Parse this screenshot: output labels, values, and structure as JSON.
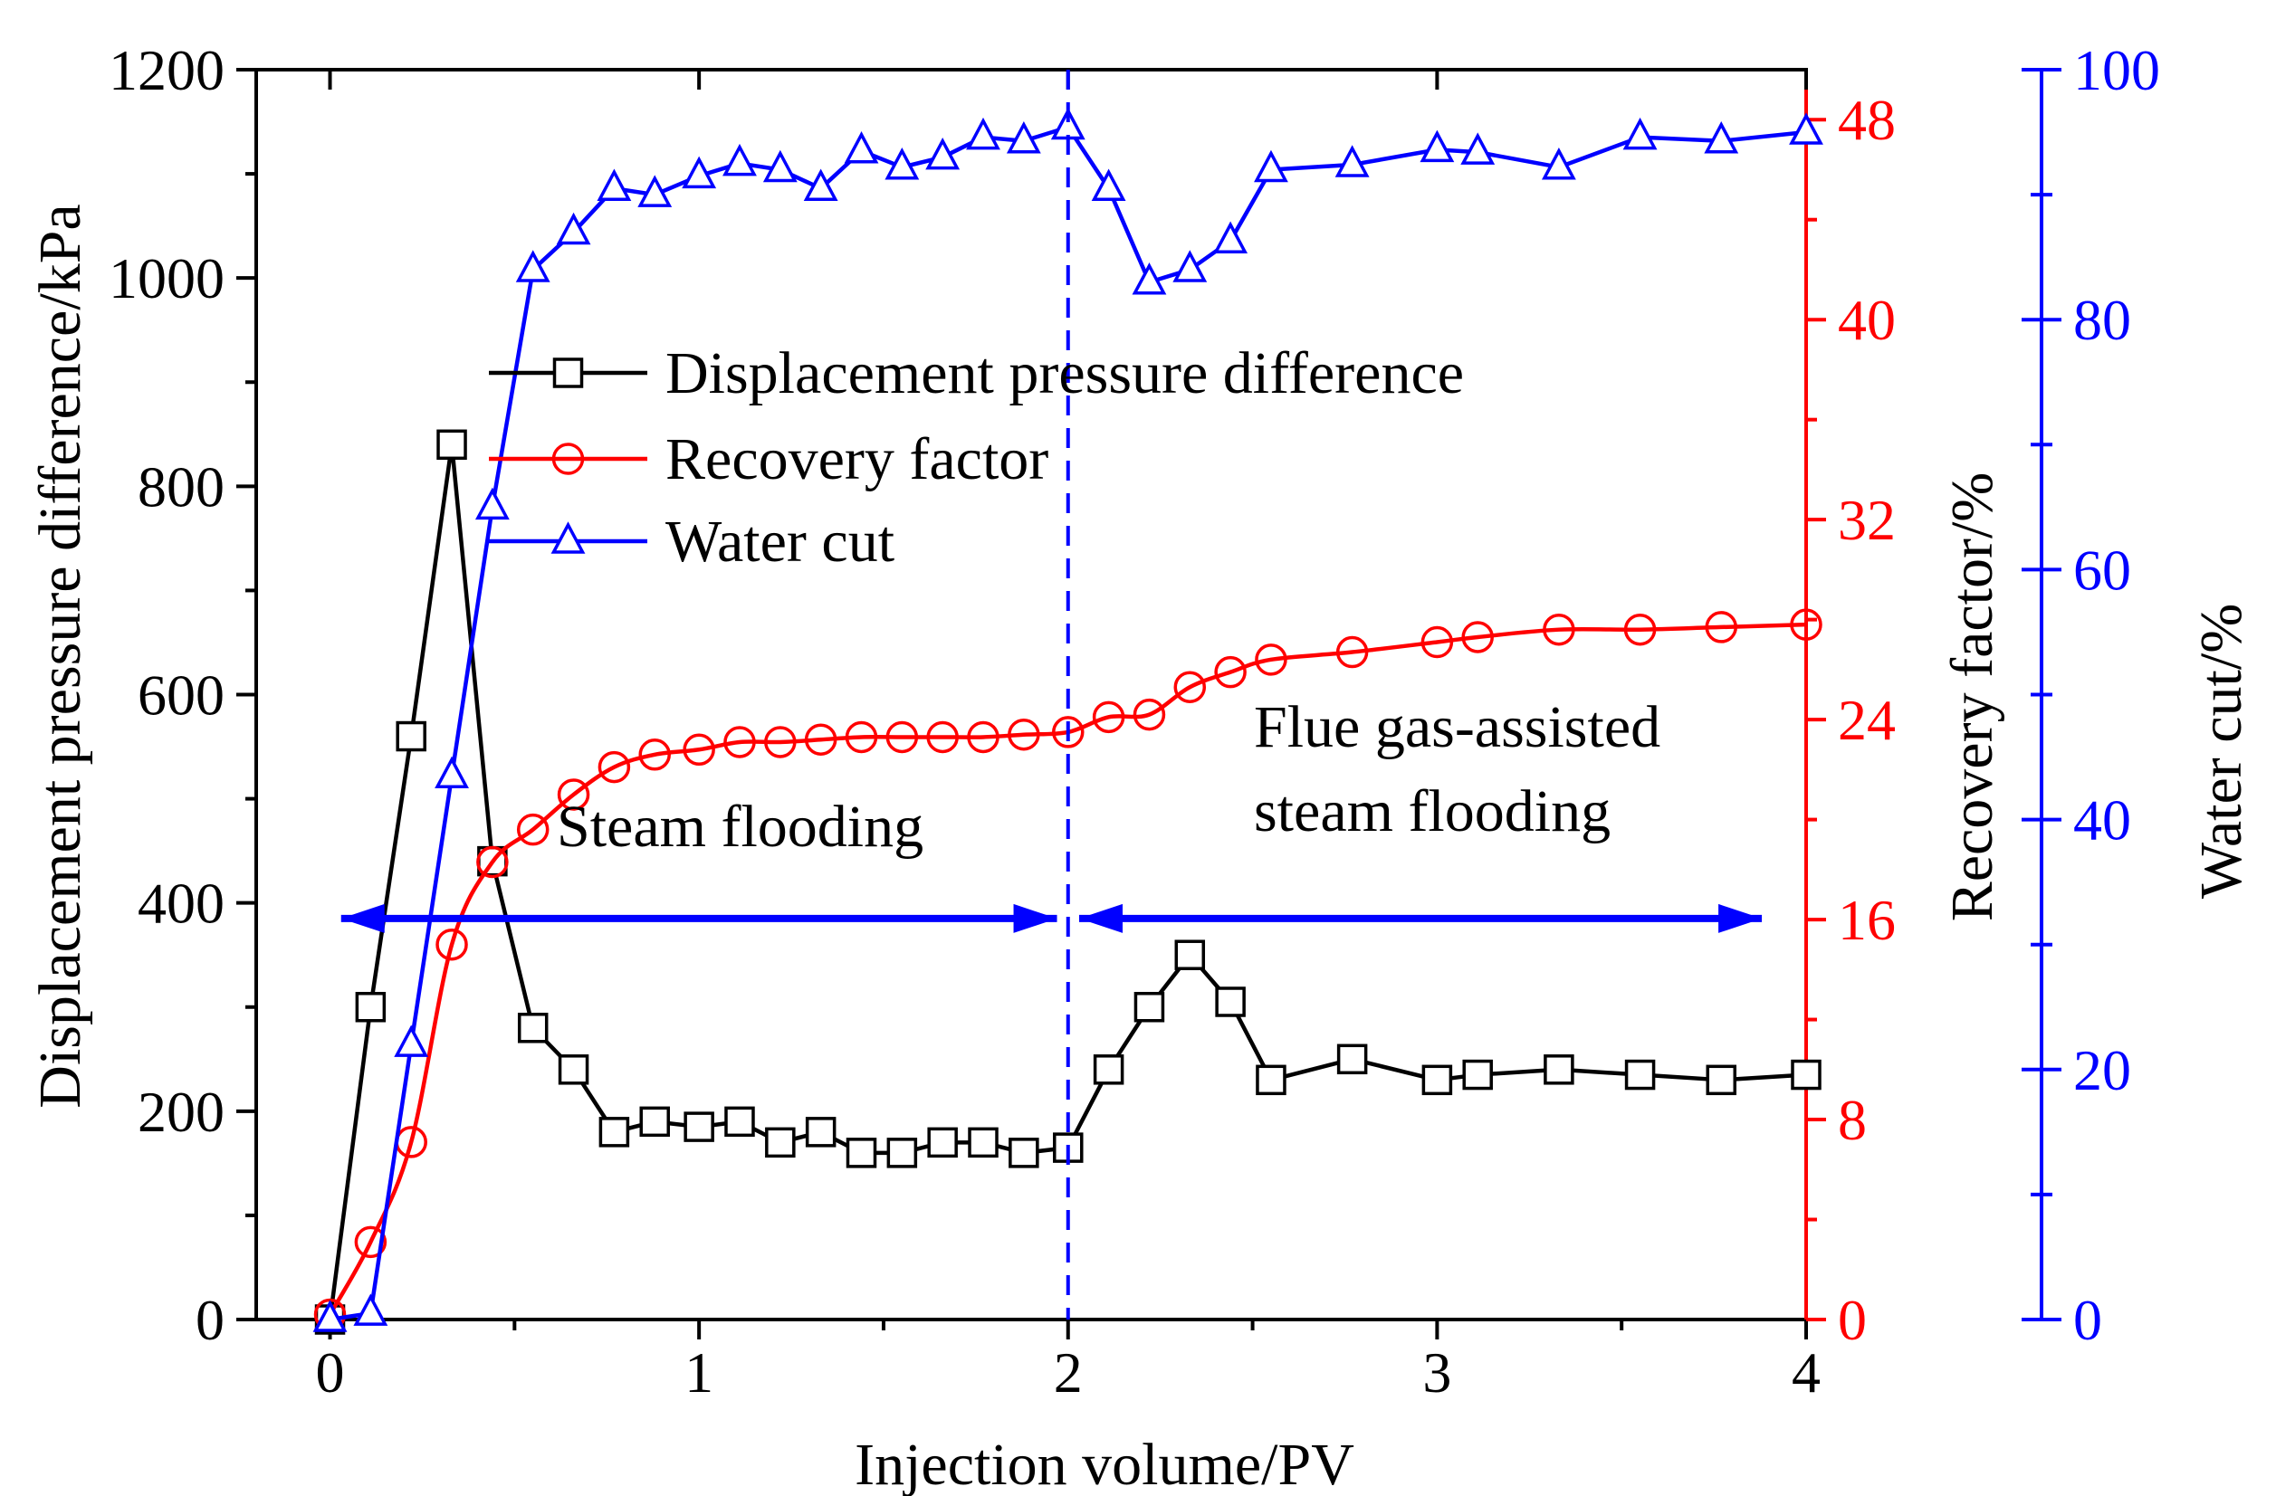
{
  "chart_data": {
    "type": "line",
    "xlabel": "Injection volume/PV",
    "x_ticks": [
      "0",
      "1",
      "2",
      "3",
      "4"
    ],
    "xlim": [
      -0.2,
      4.0
    ],
    "axes": {
      "left": {
        "label": "Displacement pressure difference/kPa",
        "ylim": [
          0,
          1200
        ],
        "ticks": [
          "0",
          "200",
          "400",
          "600",
          "800",
          "1000",
          "1200"
        ],
        "color": "#000000"
      },
      "right1": {
        "label": "Recovery factor/%",
        "ylim": [
          0,
          50
        ],
        "ticks": [
          "0",
          "8",
          "16",
          "24",
          "32",
          "40",
          "48"
        ],
        "color": "#ff0000"
      },
      "right2": {
        "label": "Water cut/%",
        "ylim": [
          0,
          100
        ],
        "ticks": [
          "0",
          "20",
          "40",
          "60",
          "80",
          "100"
        ],
        "color": "#0000ff"
      }
    },
    "series": [
      {
        "name": "Displacement pressure difference",
        "axis": "left",
        "color": "#000000",
        "marker": "square",
        "x": [
          0,
          0.11,
          0.22,
          0.33,
          0.44,
          0.55,
          0.66,
          0.77,
          0.88,
          1.0,
          1.11,
          1.22,
          1.33,
          1.44,
          1.55,
          1.66,
          1.77,
          1.88,
          2.0,
          2.11,
          2.22,
          2.33,
          2.44,
          2.55,
          2.77,
          3.0,
          3.11,
          3.33,
          3.55,
          3.77,
          4.0
        ],
        "values": [
          0,
          300,
          560,
          840,
          440,
          280,
          240,
          180,
          190,
          185,
          190,
          170,
          180,
          160,
          160,
          170,
          170,
          160,
          165,
          240,
          300,
          350,
          305,
          230,
          250,
          230,
          235,
          240,
          235,
          230,
          235
        ]
      },
      {
        "name": "Recovery factor",
        "axis": "right1",
        "color": "#ff0000",
        "marker": "circle",
        "x": [
          0,
          0.11,
          0.22,
          0.33,
          0.44,
          0.55,
          0.66,
          0.77,
          0.88,
          1.0,
          1.11,
          1.22,
          1.33,
          1.44,
          1.55,
          1.66,
          1.77,
          1.88,
          2.0,
          2.11,
          2.22,
          2.33,
          2.44,
          2.55,
          2.77,
          3.0,
          3.11,
          3.33,
          3.55,
          3.77,
          4.0
        ],
        "values": [
          0.2,
          3.1,
          7.1,
          15.0,
          18.3,
          19.6,
          21.0,
          22.1,
          22.6,
          22.8,
          23.1,
          23.1,
          23.2,
          23.3,
          23.3,
          23.3,
          23.3,
          23.4,
          23.5,
          24.1,
          24.2,
          25.3,
          25.9,
          26.4,
          26.7,
          27.1,
          27.3,
          27.6,
          27.6,
          27.7,
          27.8
        ]
      },
      {
        "name": "Water cut",
        "axis": "right2",
        "color": "#0000ff",
        "marker": "triangle",
        "x": [
          0,
          0.11,
          0.22,
          0.33,
          0.44,
          0.55,
          0.66,
          0.77,
          0.88,
          1.0,
          1.11,
          1.22,
          1.33,
          1.44,
          1.55,
          1.66,
          1.77,
          1.88,
          2.0,
          2.11,
          2.22,
          2.33,
          2.44,
          2.55,
          2.77,
          3.0,
          3.11,
          3.33,
          3.55,
          3.77,
          4.0
        ],
        "values": [
          0,
          0.5,
          22,
          43.5,
          65,
          84,
          87,
          90.5,
          90,
          91.5,
          92.5,
          92,
          90.5,
          93.5,
          92.2,
          93,
          94.6,
          94.3,
          95.4,
          90.5,
          83,
          84,
          86.3,
          92,
          92.4,
          93.6,
          93.4,
          92.2,
          94.6,
          94.3,
          95
        ]
      }
    ],
    "legend": {
      "position": "top-left",
      "entries": [
        "Displacement pressure difference",
        "Recovery factor",
        "Water cut"
      ]
    },
    "annotations": [
      {
        "text": "Steam flooding",
        "arrow_from_x": 0.03,
        "arrow_to_x": 1.97,
        "arrow_y": 385
      },
      {
        "text_lines": [
          "Flue gas-assisted",
          "steam flooding"
        ],
        "arrow_from_x": 2.03,
        "arrow_to_x": 3.88,
        "arrow_y": 385
      }
    ],
    "divider_x": 2.0
  }
}
